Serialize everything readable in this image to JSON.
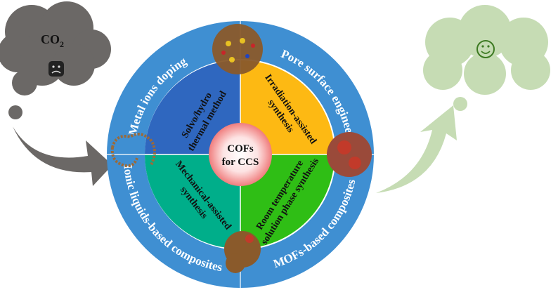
{
  "left_cloud": {
    "label": "CO",
    "subscript": "2",
    "face": "sad",
    "color": "#6b6866"
  },
  "right_cloud": {
    "face": "smiley",
    "color": "#c6dcb4"
  },
  "center": {
    "line1": "COFs",
    "line2": "for CCS"
  },
  "quadrants": [
    {
      "line1": "Solvo/hydro",
      "line2": "thermal method",
      "color": "#2f67bf"
    },
    {
      "line1": "Irradiation-assisted",
      "line2": "synthesis",
      "color": "#fdb913"
    },
    {
      "line1": "Mechanical-assisted",
      "line2": "synthesis",
      "color": "#00ae8a"
    },
    {
      "line1": "Room temperature",
      "line2": "solution phase synthesis",
      "color": "#2fbe15"
    }
  ],
  "ring": {
    "color": "#3f8fd2",
    "labels": [
      "Metal ions doping",
      "Pore surface engineering",
      "Ionic liquids-based composites",
      "MOFs-based composites"
    ]
  }
}
